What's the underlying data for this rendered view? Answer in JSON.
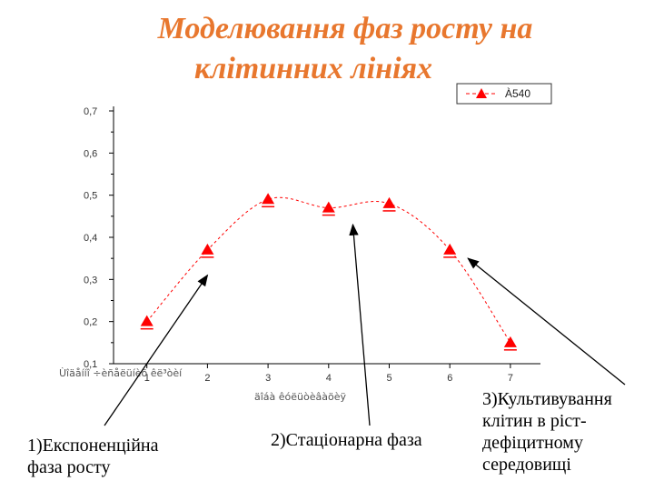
{
  "slide": {
    "title_line1": "Моделювання фаз росту на",
    "title_line2": "клітинних лініях"
  },
  "annotations": [
    {
      "text_line1": "1)Експоненційна",
      "text_line2": "фаза росту"
    },
    {
      "text_line1": "2)Стаціонарна фаза"
    },
    {
      "text_line1": "3)Культивування",
      "text_line2": "клітин в ріст-",
      "text_line3": "дефіцитному",
      "text_line4": "середовищі"
    }
  ],
  "colors": {
    "title": "#e8772e",
    "series": "#ff0000",
    "axis": "#000000",
    "arrow": "#000000"
  },
  "chart_data": {
    "type": "line",
    "title": "",
    "xlabel": "äîáà êóëüòèâàöèÿ",
    "ylabel": "",
    "xlabel_garbled": "Ùîäåííî ÷èñåëüíèõ êë³òèí",
    "xlim": [
      1,
      7
    ],
    "ylim": [
      0.1,
      0.7
    ],
    "x_ticks": [
      "1",
      "2",
      "3",
      "4",
      "5",
      "6",
      "7"
    ],
    "y_ticks": [
      "0,1",
      "0,2",
      "0,3",
      "0,4",
      "0,5",
      "0,6",
      "0,7"
    ],
    "grid": false,
    "legend_position": "top-right",
    "series": [
      {
        "name": "À540",
        "marker": "triangle",
        "line_style": "dashed",
        "x": [
          1,
          2,
          3,
          4,
          5,
          6,
          7
        ],
        "y": [
          0.2,
          0.37,
          0.49,
          0.47,
          0.48,
          0.37,
          0.15
        ]
      }
    ],
    "arrow_targets": [
      {
        "from_annotation": 1,
        "x": 2.0,
        "y": 0.31
      },
      {
        "from_annotation": 2,
        "x": 4.4,
        "y": 0.43
      },
      {
        "from_annotation": 3,
        "x": 6.3,
        "y": 0.35
      }
    ]
  }
}
